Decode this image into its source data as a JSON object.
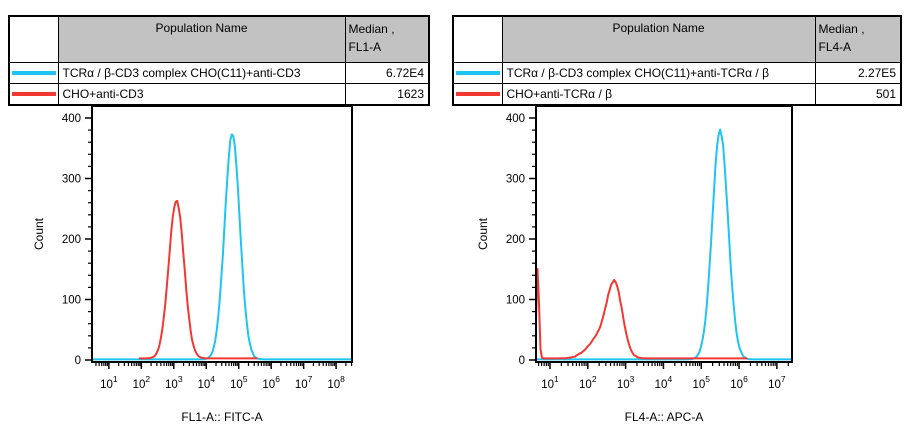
{
  "colors": {
    "cyan_series": "#1fc4f2",
    "red_series": "#f23833",
    "table_header_gray": "#c2c2c2",
    "axis_black": "#000000",
    "background": "#ffffff"
  },
  "tables": [
    {
      "header": {
        "name": "Population Name",
        "median_line1": "Median ,",
        "median_line2": "FL1-A"
      },
      "rows": [
        {
          "swatch": "cyan-line",
          "name": "TCRα / β-CD3 complex CHO(C11)+anti-CD3",
          "median": "6.72E4"
        },
        {
          "swatch": "red-line",
          "name": "CHO+anti-CD3",
          "median": "1623"
        }
      ]
    },
    {
      "header": {
        "name": "Population Name",
        "median_line1": "Median ,",
        "median_line2": "FL4-A"
      },
      "rows": [
        {
          "swatch": "cyan-line",
          "name": "TCRα / β-CD3 complex CHO(C11)+anti-TCRα / β",
          "median": "2.27E5"
        },
        {
          "swatch": "red-line",
          "name": "CHO+anti-TCRα / β",
          "median": "501"
        }
      ]
    }
  ],
  "chart_data": [
    {
      "type": "line",
      "variant": "flow-cytometry-overlay-histogram",
      "xlabel": "FL1-A:: FITC-A",
      "ylabel": "Count",
      "x_scale": "log10",
      "xlim_log10": [
        0.48,
        8.49
      ],
      "x_major_ticks_exponents": [
        1,
        2,
        3,
        4,
        5,
        6,
        7,
        8
      ],
      "ylim": [
        0,
        420
      ],
      "y_ticks": [
        0,
        100,
        200,
        300,
        400
      ],
      "y_minor_step": 20,
      "grid": false,
      "legend": "table-above",
      "series": [
        {
          "name": "TCRα / β-CD3 complex CHO(C11)+anti-CD3",
          "color": "#1fc4f2",
          "median": "6.72E4",
          "domain_log10": [
            0.48,
            8.49
          ],
          "baseline_count": 1,
          "peaks": [
            {
              "mode_log10": 4.8,
              "mode_x": 63000,
              "height_count": 372,
              "sigma_log10": 0.235
            }
          ]
        },
        {
          "name": "CHO+anti-CD3",
          "color": "#f23833",
          "median": "1623",
          "domain_log10": [
            1.95,
            5.55
          ],
          "baseline_count": 2.6,
          "peaks": [
            {
              "mode_log10": 3.08,
              "mode_x": 1200,
              "height_count": 262,
              "sigma_log10": 0.235
            }
          ]
        }
      ]
    },
    {
      "type": "line",
      "variant": "flow-cytometry-overlay-histogram",
      "xlabel": "FL4-A:: APC-A",
      "ylabel": "Count",
      "x_scale": "log10",
      "xlim_log10": [
        0.63,
        7.4
      ],
      "x_major_ticks_exponents": [
        1,
        2,
        3,
        4,
        5,
        6,
        7
      ],
      "ylim": [
        0,
        420
      ],
      "y_ticks": [
        0,
        100,
        200,
        300,
        400
      ],
      "y_minor_step": 20,
      "grid": false,
      "legend": "table-above",
      "series": [
        {
          "name": "TCRα / β-CD3 complex CHO(C11)+anti-TCRα / β",
          "color": "#1fc4f2",
          "median": "2.27E5",
          "domain_log10": [
            0.63,
            7.4
          ],
          "baseline_count": 1,
          "peaks": [
            {
              "mode_log10": 5.5,
              "mode_x": 316000,
              "height_count": 378,
              "sigma_log10": 0.21
            }
          ]
        },
        {
          "name": "CHO+anti-TCRα / β",
          "color": "#f23833",
          "median": "501",
          "domain_log10": [
            0.63,
            6.2
          ],
          "baseline_count": 2.6,
          "peaks": [
            {
              "mode_log10": 2.72,
              "mode_x": 525,
              "height_count": 105,
              "sigma_log10": 0.2
            },
            {
              "mode_log10": 2.38,
              "mode_x": 240,
              "height_count": 38,
              "sigma_log10": 0.33
            },
            {
              "mode_log10": 0.675,
              "mode_x": 4.7,
              "height_count": 150,
              "sigma_log10": 0.035,
              "note": "off-scale events pinned at axis minimum"
            }
          ]
        }
      ]
    }
  ]
}
